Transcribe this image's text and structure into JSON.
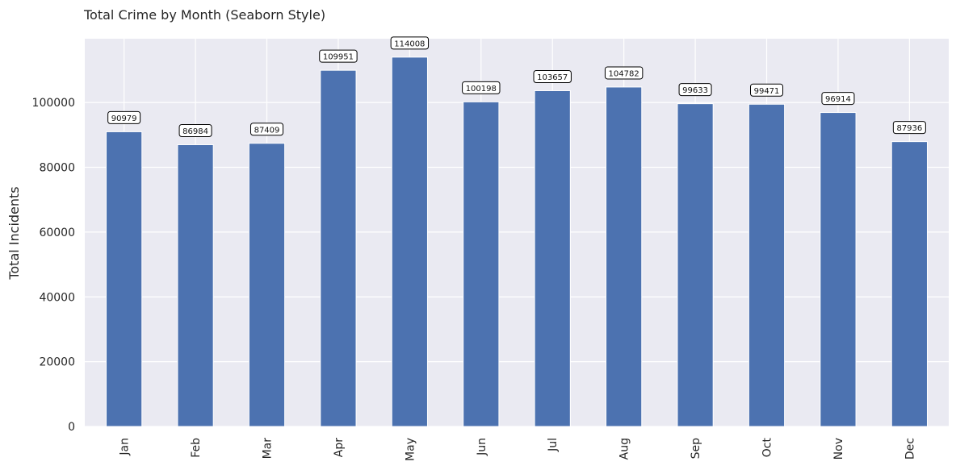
{
  "chart_data": {
    "type": "bar",
    "title": "Total Crime by Month (Seaborn Style)",
    "xlabel": "",
    "ylabel": "Total Incidents",
    "categories": [
      "Jan",
      "Feb",
      "Mar",
      "Apr",
      "May",
      "Jun",
      "Jul",
      "Aug",
      "Sep",
      "Oct",
      "Nov",
      "Dec"
    ],
    "values": [
      90979,
      86984,
      87409,
      109951,
      114008,
      100198,
      103657,
      104782,
      99633,
      99471,
      96914,
      87936
    ],
    "ylim": [
      0,
      119700
    ],
    "yticks": [
      0,
      20000,
      40000,
      60000,
      80000,
      100000
    ],
    "grid": true,
    "legend": "none",
    "colors": {
      "bar": "#4c72b0",
      "background": "#eaeaf2",
      "grid": "#ffffff"
    }
  }
}
